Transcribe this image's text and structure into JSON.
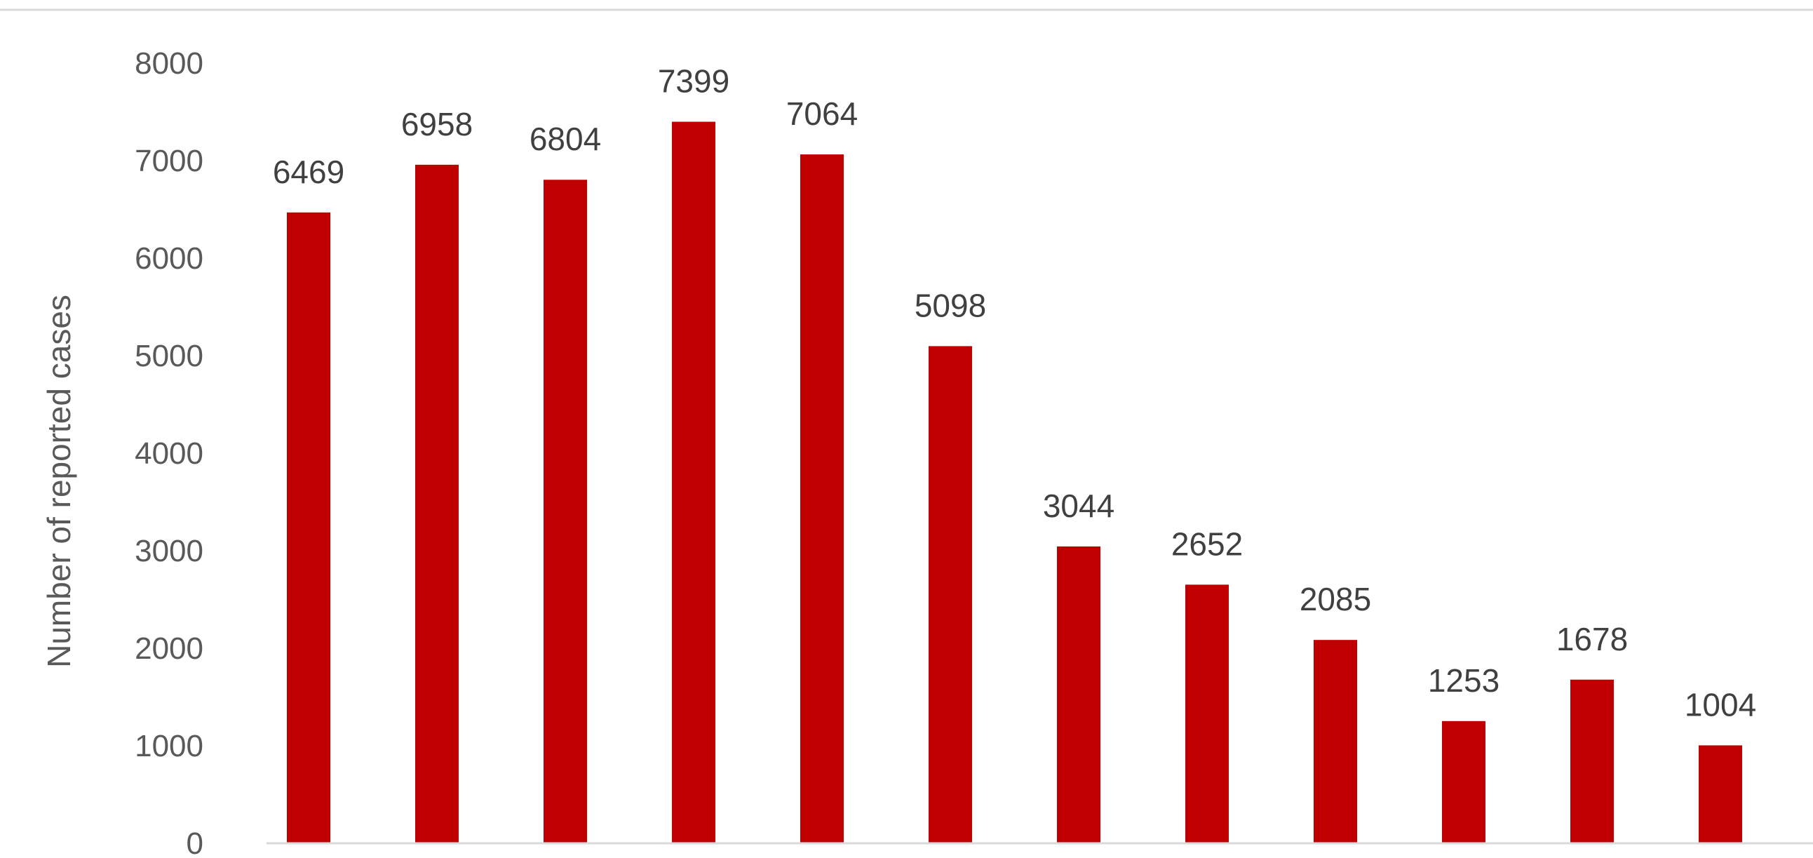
{
  "chart_data": {
    "type": "bar",
    "title": "",
    "xlabel": "",
    "ylabel": "Number  of reported cases",
    "ylim": [
      0,
      8000
    ],
    "yticks": [
      0,
      1000,
      2000,
      3000,
      4000,
      5000,
      6000,
      7000,
      8000
    ],
    "grid": false,
    "legend": "none",
    "bar_color": "#c00000",
    "values": [
      6469,
      6958,
      6804,
      7399,
      7064,
      5098,
      3044,
      2652,
      2085,
      1253,
      1678,
      1004
    ],
    "data_labels": [
      "6469",
      "6958",
      "6804",
      "7399",
      "7064",
      "5098",
      "3044",
      "2652",
      "2085",
      "1253",
      "1678",
      "1004"
    ]
  }
}
